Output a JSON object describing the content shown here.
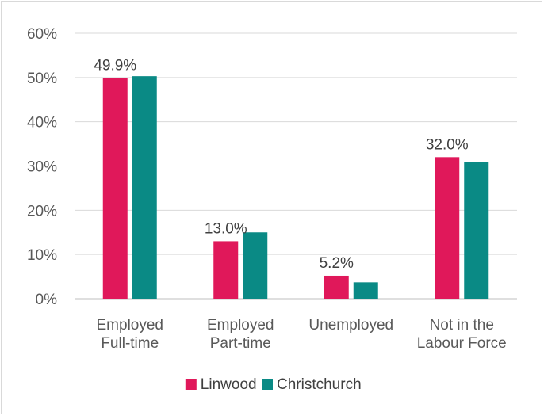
{
  "chart_data": {
    "type": "bar",
    "title": "",
    "xlabel": "",
    "ylabel": "",
    "categories": [
      [
        "Employed",
        "Full-time"
      ],
      [
        "Employed",
        "Part-time"
      ],
      [
        "Unemployed"
      ],
      [
        "Not in the",
        "Labour Force"
      ]
    ],
    "series": [
      {
        "name": "Linwood",
        "color": "#e0185a",
        "values": [
          49.9,
          13.0,
          5.2,
          32.0
        ],
        "data_labels": [
          "49.9%",
          "13.0%",
          "5.2%",
          "32.0%"
        ]
      },
      {
        "name": "Christchurch",
        "color": "#0a8a85",
        "values": [
          50.3,
          15.0,
          3.7,
          30.9
        ]
      }
    ],
    "ylim": [
      0,
      60
    ],
    "yticks": [
      0,
      10,
      20,
      30,
      40,
      50,
      60
    ],
    "ytick_labels": [
      "0%",
      "10%",
      "20%",
      "30%",
      "40%",
      "50%",
      "60%"
    ],
    "grid": true,
    "legend_position": "bottom"
  }
}
